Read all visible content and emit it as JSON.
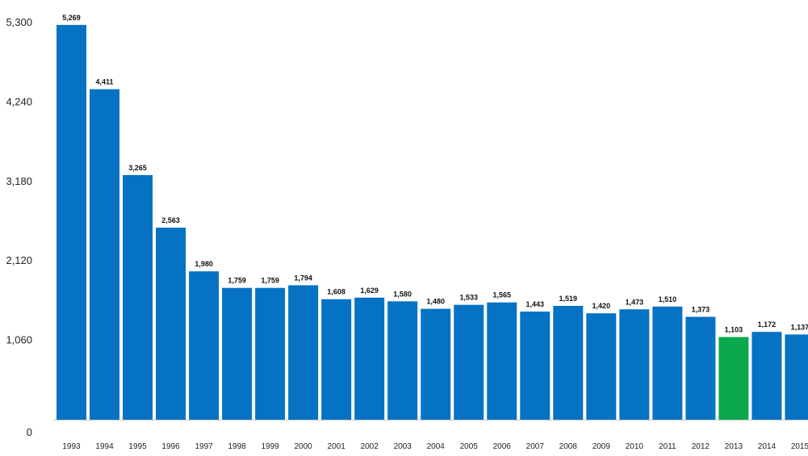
{
  "chart_data": {
    "type": "bar",
    "title": "",
    "xlabel": "",
    "ylabel": "",
    "categories": [
      "1993",
      "1994",
      "1995",
      "1996",
      "1997",
      "1998",
      "1999",
      "2000",
      "2001",
      "2002",
      "2003",
      "2004",
      "2005",
      "2006",
      "2007",
      "2008",
      "2009",
      "2010",
      "2011",
      "2012",
      "2013",
      "2014",
      "2015"
    ],
    "values": [
      5269,
      4411,
      3265,
      2563,
      1980,
      1759,
      1759,
      1794,
      1608,
      1629,
      1580,
      1480,
      1533,
      1565,
      1443,
      1519,
      1420,
      1473,
      1510,
      1373,
      1103,
      1172,
      1137
    ],
    "data_labels": [
      "5,269",
      "4,411",
      "3,265",
      "2,563",
      "1,980",
      "1,759",
      "1,759",
      "1,794",
      "1,608",
      "1,629",
      "1,580",
      "1,480",
      "1,533",
      "1,565",
      "1,443",
      "1,519",
      "1,420",
      "1,473",
      "1,510",
      "1,373",
      "1,103",
      "1,172",
      "1,137"
    ],
    "y_ticks": [
      0,
      1060,
      2120,
      3180,
      4240,
      5300
    ],
    "y_tick_labels": [
      "0",
      "1,060",
      "2,120",
      "3,180",
      "4,240",
      "5,300"
    ],
    "ylim": [
      0,
      5300
    ],
    "grid": false,
    "colors": {
      "default_bar": "#0672c4",
      "highlight_bar": "#0aa84f",
      "axis": "#c9c9c9"
    },
    "highlight_category": "2013"
  }
}
